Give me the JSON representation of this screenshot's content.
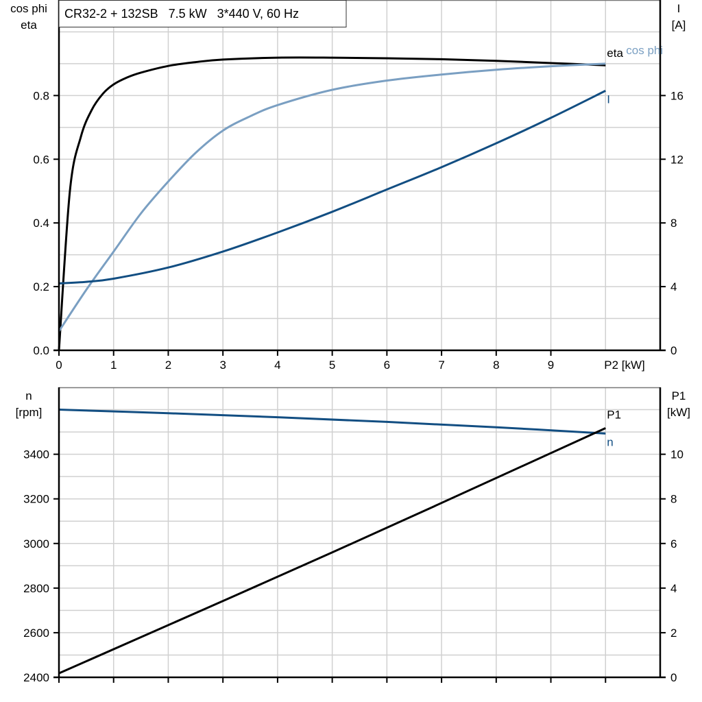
{
  "chart_data": [
    {
      "type": "line",
      "title": "CR32-2 + 132SB   7.5 kW   3*440 V, 60 Hz",
      "xlabel": "P2 [kW]",
      "ylabel_left": [
        "cos phi",
        "eta"
      ],
      "ylabel_right": [
        "I",
        "[A]"
      ],
      "xlim": [
        0,
        11
      ],
      "ylim_left": [
        0,
        1.1
      ],
      "ylim_right": [
        0,
        22
      ],
      "xticks": [
        0,
        1,
        2,
        3,
        4,
        5,
        6,
        7,
        8,
        9
      ],
      "xtick_labels": [
        "0",
        "1",
        "2",
        "3",
        "4",
        "5",
        "6",
        "7",
        "8",
        "9"
      ],
      "yticks_left": [
        0,
        0.2,
        0.4,
        0.6,
        0.8
      ],
      "ytick_labels_left": [
        "0.0",
        "0.2",
        "0.4",
        "0.6",
        "0.8"
      ],
      "yticks_right": [
        0,
        4,
        8,
        12,
        16
      ],
      "ytick_labels_right": [
        "0",
        "4",
        "8",
        "12",
        "16"
      ],
      "grid": true,
      "series": [
        {
          "name": "eta",
          "axis": "left",
          "color": "#000000",
          "x": [
            0,
            0.2,
            0.4,
            0.6,
            0.8,
            1.0,
            1.25,
            1.5,
            2,
            2.5,
            3,
            4,
            5,
            6,
            7,
            8,
            9,
            10
          ],
          "y": [
            0.0,
            0.5,
            0.67,
            0.755,
            0.805,
            0.835,
            0.857,
            0.872,
            0.893,
            0.905,
            0.913,
            0.919,
            0.919,
            0.917,
            0.914,
            0.909,
            0.902,
            0.895
          ]
        },
        {
          "name": "cos phi",
          "axis": "left",
          "color": "#7a9fc2",
          "x": [
            0,
            0.5,
            1,
            1.5,
            2,
            2.5,
            3,
            3.5,
            4,
            5,
            6,
            7,
            8,
            9,
            10
          ],
          "y": [
            0.06,
            0.19,
            0.31,
            0.43,
            0.53,
            0.62,
            0.69,
            0.735,
            0.77,
            0.818,
            0.847,
            0.866,
            0.881,
            0.892,
            0.9
          ]
        },
        {
          "name": "I",
          "axis": "right",
          "color": "#124e82",
          "x": [
            0,
            0.5,
            1,
            2,
            3,
            4,
            5,
            6,
            7,
            8,
            9,
            10
          ],
          "y": [
            4.2,
            4.3,
            4.5,
            5.2,
            6.2,
            7.4,
            8.7,
            10.1,
            11.5,
            13.0,
            14.6,
            16.3
          ]
        }
      ]
    },
    {
      "type": "line",
      "xlim": [
        0,
        11
      ],
      "ylabel_left": [
        "n",
        "[rpm]"
      ],
      "ylabel_right": [
        "P1",
        "[kW]"
      ],
      "ylim_left": [
        2400,
        3700
      ],
      "ylim_right": [
        0,
        13
      ],
      "xticks": [
        0,
        1,
        2,
        3,
        4,
        5,
        6,
        7,
        8,
        9,
        10
      ],
      "yticks_left": [
        2400,
        2600,
        2800,
        3000,
        3200,
        3400
      ],
      "ytick_labels_left": [
        "2400",
        "2600",
        "2800",
        "3000",
        "3200",
        "3400"
      ],
      "yticks_right": [
        0,
        2,
        4,
        6,
        8,
        10
      ],
      "ytick_labels_right": [
        "0",
        "2",
        "4",
        "6",
        "8",
        "10"
      ],
      "grid": true,
      "series": [
        {
          "name": "n",
          "axis": "left",
          "color": "#124e82",
          "x": [
            0,
            2,
            4,
            6,
            8,
            10
          ],
          "y": [
            3600,
            3584,
            3566,
            3545,
            3521,
            3493
          ]
        },
        {
          "name": "P1",
          "axis": "right",
          "color": "#000000",
          "x": [
            0,
            5,
            10
          ],
          "y": [
            0.18,
            5.6,
            11.17
          ]
        }
      ]
    }
  ]
}
